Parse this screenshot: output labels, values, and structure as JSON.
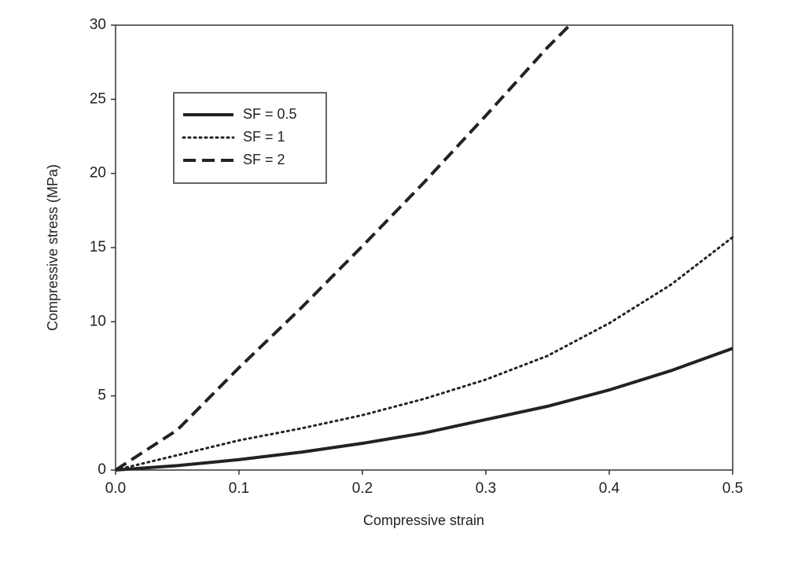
{
  "chart_data": {
    "type": "line",
    "xlabel": "Compressive strain",
    "ylabel": "Compressive stress (MPa)",
    "xlim": [
      0,
      0.5
    ],
    "ylim": [
      0,
      30
    ],
    "xticks": [
      {
        "value": 0,
        "label": "0.0"
      },
      0.1,
      0.2,
      0.3,
      0.4,
      0.5
    ],
    "yticks": [
      0,
      5,
      10,
      15,
      20,
      25,
      30
    ],
    "grid": false,
    "legend": "upper left",
    "series": [
      {
        "name": "SF = 0.5",
        "color": "#222222",
        "dash": "solid",
        "x": [
          0,
          0.05,
          0.1,
          0.15,
          0.2,
          0.25,
          0.3,
          0.35,
          0.4,
          0.45,
          0.5
        ],
        "values": [
          0,
          0.3,
          0.7,
          1.2,
          1.8,
          2.5,
          3.4,
          4.3,
          5.4,
          6.7,
          8.2
        ]
      },
      {
        "name": "SF = 1",
        "color": "#222222",
        "dash": "dotted",
        "x": [
          0,
          0.05,
          0.1,
          0.15,
          0.2,
          0.25,
          0.3,
          0.35,
          0.4,
          0.45,
          0.5
        ],
        "values": [
          0,
          1.0,
          2.0,
          2.8,
          3.7,
          4.8,
          6.1,
          7.7,
          9.9,
          12.5,
          15.7
        ]
      },
      {
        "name": "SF = 2",
        "color": "#222222",
        "dash": "dashed",
        "x": [
          0,
          0.05,
          0.1,
          0.15,
          0.2,
          0.25,
          0.3,
          0.35,
          0.368
        ],
        "values": [
          0,
          2.7,
          6.9,
          10.9,
          15.1,
          19.4,
          23.9,
          28.5,
          30
        ]
      }
    ]
  }
}
